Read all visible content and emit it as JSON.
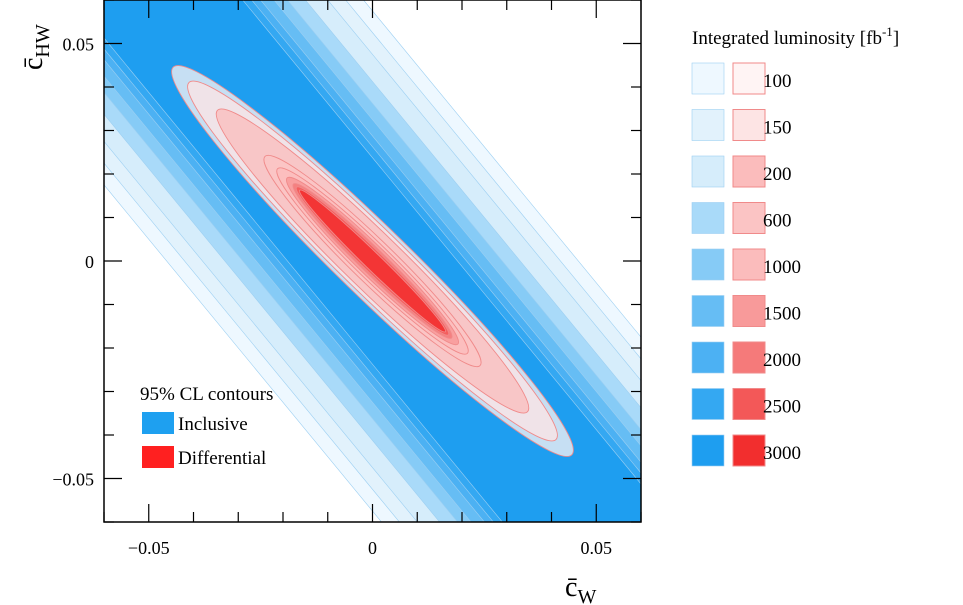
{
  "chart_data": {
    "type": "contour",
    "xlabel": "c̄",
    "xlabel_sub": "W",
    "ylabel": "c̄",
    "ylabel_sub": "HW",
    "xlim": [
      -0.06,
      0.06
    ],
    "ylim": [
      -0.06,
      0.06
    ],
    "x_ticks": [
      {
        "value": -0.05,
        "label": "−0.05"
      },
      {
        "value": 0,
        "label": "0"
      },
      {
        "value": 0.05,
        "label": "0.05"
      }
    ],
    "y_ticks": [
      {
        "value": -0.05,
        "label": "−0.05"
      },
      {
        "value": 0,
        "label": "0"
      },
      {
        "value": 0.05,
        "label": "0.05"
      }
    ],
    "inset_legend": {
      "title": "95% CL contours",
      "items": [
        {
          "label": "Inclusive",
          "color": "#1ea0f0"
        },
        {
          "label": "Differential",
          "color": "#ff2020"
        }
      ]
    },
    "luminosity_legend": {
      "title": "Integrated luminosity [fb",
      "title_sup": "-1",
      "title_end": "]",
      "values": [
        "100",
        "150",
        "200",
        "600",
        "1000",
        "1500",
        "2000",
        "2500",
        "3000"
      ]
    },
    "colors": {
      "inclusive": [
        "#eef8ff",
        "#e2f2fc",
        "#d6edfb",
        "#a9daf9",
        "#86cbf6",
        "#66bdf4",
        "#4cb1f3",
        "#34a8f2",
        "#1e9ef0"
      ],
      "differential": [
        "#fff4f4",
        "#fde4e4",
        "#fbbcbc",
        "#fbc4c4",
        "#fbbcbc",
        "#f89a9a",
        "#f57a7a",
        "#f35858",
        "#f22e2e"
      ],
      "differential_stroke": "#f08a8a",
      "inclusive_stroke": "#9ccff2"
    },
    "inclusive_band_halfwidth": [
      0.046,
      0.042,
      0.038,
      0.033,
      0.029,
      0.026,
      0.023,
      0.021,
      0.019
    ],
    "differential_ellipses": [
      {
        "semi_major": 0.063,
        "semi_minor": 0.008
      },
      {
        "semi_major": 0.058,
        "semi_minor": 0.0072
      },
      {
        "semi_major": 0.049,
        "semi_minor": 0.0064
      },
      {
        "semi_major": 0.034,
        "semi_minor": 0.0048
      },
      {
        "semi_major": 0.03,
        "semi_minor": 0.004
      },
      {
        "semi_major": 0.027,
        "semi_minor": 0.0034
      },
      {
        "semi_major": 0.025,
        "semi_minor": 0.0028
      },
      {
        "semi_major": 0.024,
        "semi_minor": 0.0024
      },
      {
        "semi_major": 0.023,
        "semi_minor": 0.0019
      }
    ],
    "ellipse_slope": -1.0
  }
}
